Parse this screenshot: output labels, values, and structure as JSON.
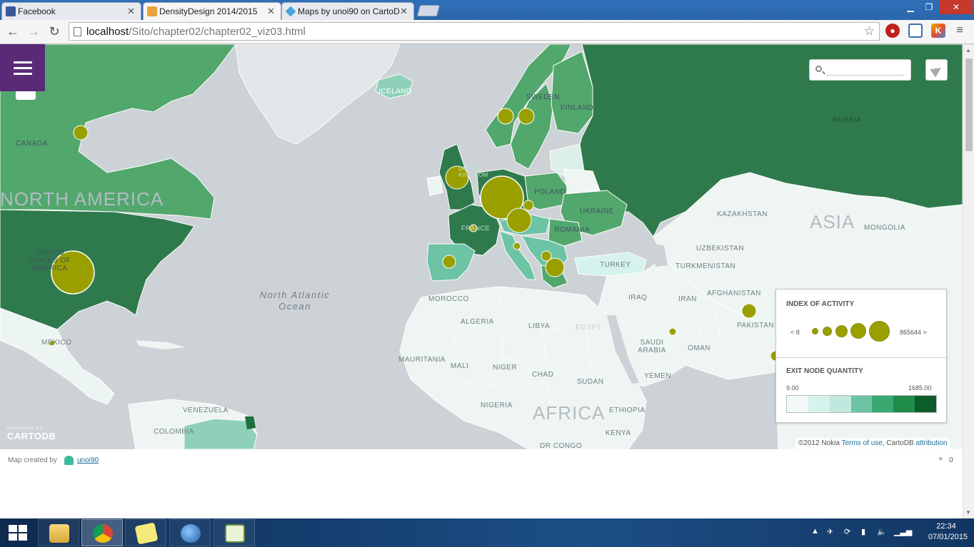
{
  "browser": {
    "tabs": [
      {
        "title": "Facebook",
        "active": false,
        "icon": "facebook-icon",
        "color": "#3b5998"
      },
      {
        "title": "DensityDesign 2014/2015",
        "active": true,
        "icon": "densitydesign-icon",
        "color": "#e8a33a"
      },
      {
        "title": "Maps by unoi90 on CartoD",
        "active": false,
        "icon": "cartodb-icon",
        "color": "#4aa3df"
      }
    ],
    "url_host": "localhost",
    "url_path": "/Sito/chapter02/chapter02_viz03.html"
  },
  "map": {
    "search_placeholder": "",
    "labels": {
      "north_america": "NORTH AMERICA",
      "canada": "CANADA",
      "united_states": "UNITED STATES OF AMERICA",
      "mexico": "MEXICO",
      "venezuela": "VENEZUELA",
      "colombia": "COLOMBIA",
      "iceland": "ICELAND",
      "finland": "FINLAND",
      "sweden": "SWEDEN",
      "russia": "RUSSIA",
      "poland": "POLAND",
      "ukraine": "UKRAINE",
      "romania": "ROMANIA",
      "turkey": "TURKEY",
      "asia": "ASIA",
      "kazakhstan": "KAZAKHSTAN",
      "mongolia": "MONGOLIA",
      "uzbekistan": "UZBEKISTAN",
      "turkmenistan": "TURKMENISTAN",
      "afghanistan": "AFGHANISTAN",
      "pakistan": "PAKISTAN",
      "iran": "IRAN",
      "iraq": "IRAQ",
      "saudi_arabia": "SAUDI ARABIA",
      "oman": "OMAN",
      "yemen": "YEMEN",
      "morocco": "MOROCCO",
      "algeria": "ALGERIA",
      "libya": "LIBYA",
      "egypt": "EGYPT",
      "mauritania": "MAURITANIA",
      "mali": "MALI",
      "niger": "NIGER",
      "chad": "CHAD",
      "sudan": "SUDAN",
      "nigeria": "NIGERIA",
      "ethiopia": "ETHIOPIA",
      "kenya": "KENYA",
      "dr_congo": "DR CONGO",
      "africa": "AFRICA",
      "atlantic": "North Atlantic Ocean",
      "france": "FRANCE",
      "uk": "UNITED KINGDOM"
    },
    "bubbles": [
      {
        "place": "United States",
        "size": "xl"
      },
      {
        "place": "Canada",
        "size": "s"
      },
      {
        "place": "Germany",
        "size": "xl"
      },
      {
        "place": "United Kingdom",
        "size": "m"
      },
      {
        "place": "Switzerland/Austria",
        "size": "m"
      },
      {
        "place": "Sweden",
        "size": "s"
      },
      {
        "place": "Finland",
        "size": "s"
      },
      {
        "place": "Greece",
        "size": "s"
      },
      {
        "place": "Spain",
        "size": "s"
      },
      {
        "place": "Pakistan",
        "size": "s"
      }
    ],
    "attribution": "©2012 Nokia",
    "attribution_links": [
      "Terms of use",
      ", CartoDB ",
      "attribution"
    ],
    "powered_by": "POWERED BY",
    "cartodb": "CARTODB"
  },
  "legend": {
    "bubble_title": "INDEX OF ACTIVITY",
    "bubble_min": "< 8",
    "bubble_max": "865644 >",
    "choropleth_title": "EXIT NODE QUANTITY",
    "choropleth_min": "9.00",
    "choropleth_max": "1685.00",
    "colors": [
      "#f0f9f7",
      "#d6f2ec",
      "#c0e8de",
      "#6cc4a5",
      "#3ba874",
      "#208c4a",
      "#0d5c2b"
    ],
    "bubble_color": "#9a9f00"
  },
  "footer": {
    "created_by": "Map created by",
    "user": "unoi90",
    "likes": "0"
  },
  "taskbar": {
    "time": "22:34",
    "date": "07/01/2015"
  }
}
